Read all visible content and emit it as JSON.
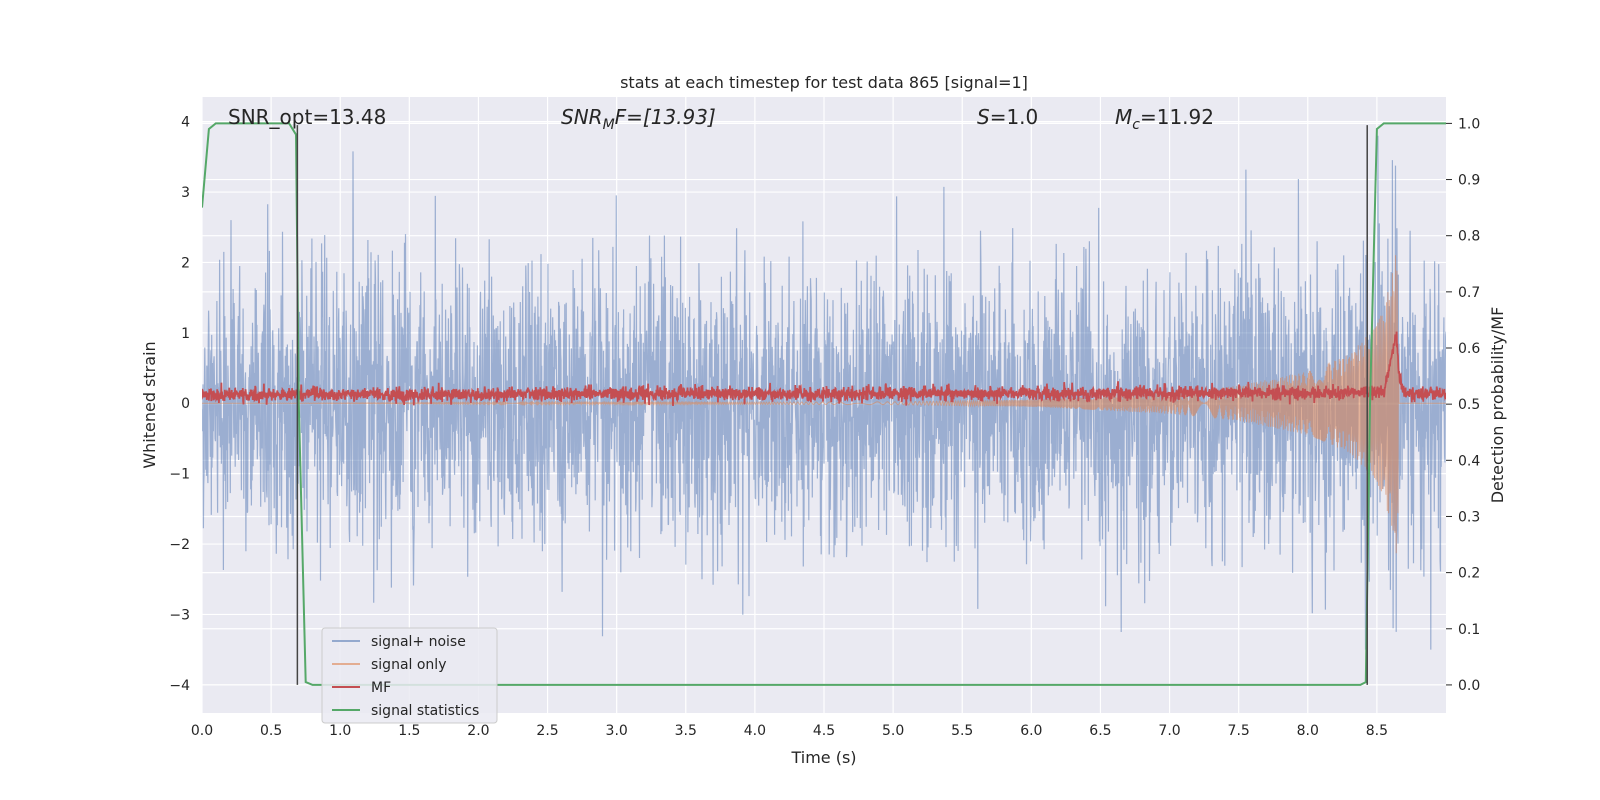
{
  "chart_data": {
    "type": "line",
    "title": "stats at each timestep for test data 865 [signal=1]",
    "xlabel": "Time (s)",
    "ylabel": "Whitened strain",
    "y2label": "Detection probability/MF",
    "xlim": [
      0.0,
      9.0
    ],
    "ylim": [
      -4.4,
      4.35
    ],
    "y2lim": [
      -0.05,
      1.047
    ],
    "x_ticks": [
      "0.0",
      "0.5",
      "1.0",
      "1.5",
      "2.0",
      "2.5",
      "3.0",
      "3.5",
      "4.0",
      "4.5",
      "5.0",
      "5.5",
      "6.0",
      "6.5",
      "7.0",
      "7.5",
      "8.0",
      "8.5"
    ],
    "y_ticks": [
      "4",
      "3",
      "2",
      "1",
      "0",
      "−1",
      "−2",
      "−3",
      "−4"
    ],
    "y2_ticks": [
      "1.0",
      "0.9",
      "0.8",
      "0.7",
      "0.6",
      "0.5",
      "0.4",
      "0.3",
      "0.2",
      "0.1",
      "0.0"
    ],
    "grid": true,
    "legend_position": "lower-left",
    "annotations": {
      "snr_opt": "SNR_opt=13.48",
      "snr_mf_main": "SNR",
      "snr_mf_sub": "M",
      "snr_mf_rest": "F=[13.93]",
      "s_main": "S",
      "s_rest": "=1.0",
      "mc_main": "M",
      "mc_sub": "c",
      "mc_rest": "=11.92"
    },
    "vlines_x": [
      0.69,
      8.43
    ],
    "series": [
      {
        "name": "signal+ noise",
        "color": "#4c72b0",
        "description_range": [
          -3.5,
          3.8
        ],
        "rms_envelope": 1.0
      },
      {
        "name": "signal only",
        "color": "#dd8452",
        "x": [
          0.0,
          5.0,
          6.0,
          7.0,
          7.5,
          8.0,
          8.3,
          8.5,
          8.6,
          8.65,
          8.66
        ],
        "amplitude": [
          0.0,
          0.02,
          0.05,
          0.15,
          0.25,
          0.45,
          0.7,
          1.1,
          1.7,
          2.3,
          0.0
        ]
      },
      {
        "name": "MF",
        "color": "#c44e52",
        "baseline": 0.12,
        "x": [
          0.0,
          8.55,
          8.6,
          8.64,
          8.66,
          8.7,
          9.0
        ],
        "peak": [
          0.12,
          0.15,
          0.6,
          1.0,
          0.4,
          0.15,
          0.12
        ]
      },
      {
        "name": "signal statistics",
        "color": "#55a868",
        "axis": "right",
        "x": [
          0.0,
          0.05,
          0.1,
          0.63,
          0.68,
          0.7,
          0.75,
          0.8,
          8.38,
          8.42,
          8.45,
          8.5,
          8.55,
          9.0
        ],
        "y": [
          0.85,
          0.99,
          1.0,
          1.0,
          0.98,
          0.5,
          0.005,
          0.0,
          0.0,
          0.005,
          0.5,
          0.99,
          1.0,
          1.0
        ]
      }
    ]
  }
}
